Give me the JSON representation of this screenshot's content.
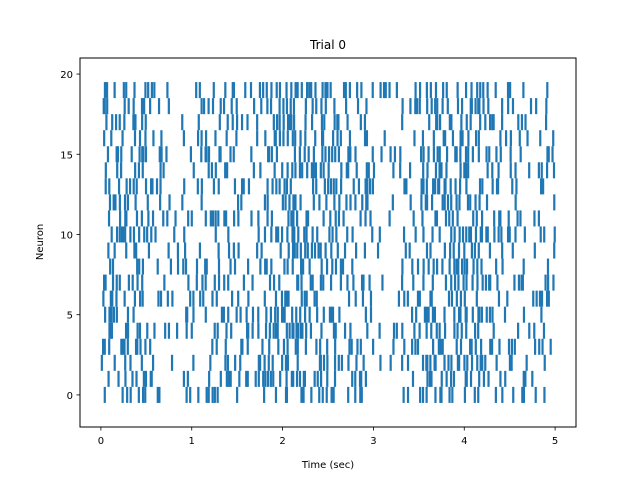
{
  "chart_data": {
    "type": "raster",
    "title": "Trial 0",
    "xlabel": "Time (sec)",
    "ylabel": "Neuron",
    "xlim": [
      -0.23,
      5.23
    ],
    "ylim": [
      -2.0,
      21.0
    ],
    "xticks": [
      0,
      1,
      2,
      3,
      4,
      5
    ],
    "xtick_labels": [
      "0",
      "1",
      "2",
      "3",
      "4",
      "5"
    ],
    "yticks": [
      0,
      5,
      10,
      15,
      20
    ],
    "ytick_labels": [
      "0",
      "5",
      "10",
      "15",
      "20"
    ],
    "grid": false,
    "color": "#1f77b4",
    "line_length": 1,
    "neurons": 20,
    "duration_sec": 5,
    "activity_profile": {
      "time_bins_sec": [
        0.0,
        0.25,
        0.5,
        0.75,
        1.0,
        1.25,
        1.5,
        1.75,
        2.0,
        2.25,
        2.5,
        2.75,
        3.0,
        3.25,
        3.5,
        3.75,
        4.0,
        4.25,
        4.5,
        4.75
      ],
      "relative_density": [
        0.55,
        0.55,
        0.35,
        0.2,
        0.35,
        0.4,
        0.35,
        0.55,
        0.6,
        0.55,
        0.45,
        0.35,
        0.15,
        0.3,
        0.5,
        0.6,
        0.65,
        0.45,
        0.3,
        0.25
      ]
    }
  }
}
